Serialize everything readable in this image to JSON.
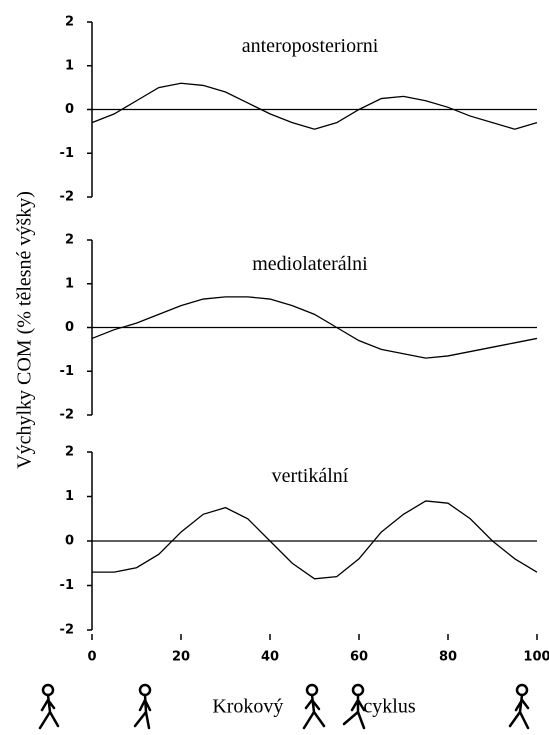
{
  "chart_data": [
    {
      "type": "line",
      "title": "anteroposteriorni",
      "ylabel": "Výchylky COM (% tělesné výšky)",
      "x": [
        0,
        5,
        10,
        15,
        20,
        25,
        30,
        35,
        40,
        45,
        50,
        55,
        60,
        65,
        70,
        75,
        80,
        85,
        90,
        95,
        100
      ],
      "values": [
        -0.3,
        -0.1,
        0.2,
        0.5,
        0.6,
        0.55,
        0.4,
        0.15,
        -0.1,
        -0.3,
        -0.45,
        -0.3,
        0,
        0.25,
        0.3,
        0.2,
        0.05,
        -0.15,
        -0.3,
        -0.45,
        -0.3
      ],
      "color": "#000000",
      "xlim": [
        0,
        100
      ],
      "ylim": [
        -2,
        2
      ],
      "yticks": [
        -2,
        -1,
        0,
        1,
        2
      ]
    },
    {
      "type": "line",
      "title": "mediolaterálni",
      "x": [
        0,
        5,
        10,
        15,
        20,
        25,
        30,
        35,
        40,
        45,
        50,
        55,
        60,
        65,
        70,
        75,
        80,
        85,
        90,
        95,
        100
      ],
      "values": [
        -0.25,
        -0.05,
        0.1,
        0.3,
        0.5,
        0.65,
        0.7,
        0.7,
        0.65,
        0.5,
        0.3,
        0,
        -0.3,
        -0.5,
        -0.6,
        -0.7,
        -0.65,
        -0.55,
        -0.45,
        -0.35,
        -0.25
      ],
      "color": "#000000",
      "xlim": [
        0,
        100
      ],
      "ylim": [
        -2,
        2
      ],
      "yticks": [
        -2,
        -1,
        0,
        1,
        2
      ]
    },
    {
      "type": "line",
      "title": "vertikální",
      "xlabel": "Krokový cyklus",
      "x": [
        0,
        5,
        10,
        15,
        20,
        25,
        30,
        35,
        40,
        45,
        50,
        55,
        60,
        65,
        70,
        75,
        80,
        85,
        90,
        95,
        100
      ],
      "values": [
        -0.7,
        -0.7,
        -0.6,
        -0.3,
        0.2,
        0.6,
        0.75,
        0.5,
        0,
        -0.5,
        -0.85,
        -0.8,
        -0.4,
        0.2,
        0.6,
        0.9,
        0.85,
        0.5,
        0,
        -0.4,
        -0.7
      ],
      "color": "#000000",
      "xlim": [
        0,
        100
      ],
      "ylim": [
        -2,
        2
      ],
      "yticks": [
        -2,
        -1,
        0,
        1,
        2
      ],
      "xticks": [
        0,
        20,
        40,
        60,
        80,
        100
      ]
    }
  ]
}
